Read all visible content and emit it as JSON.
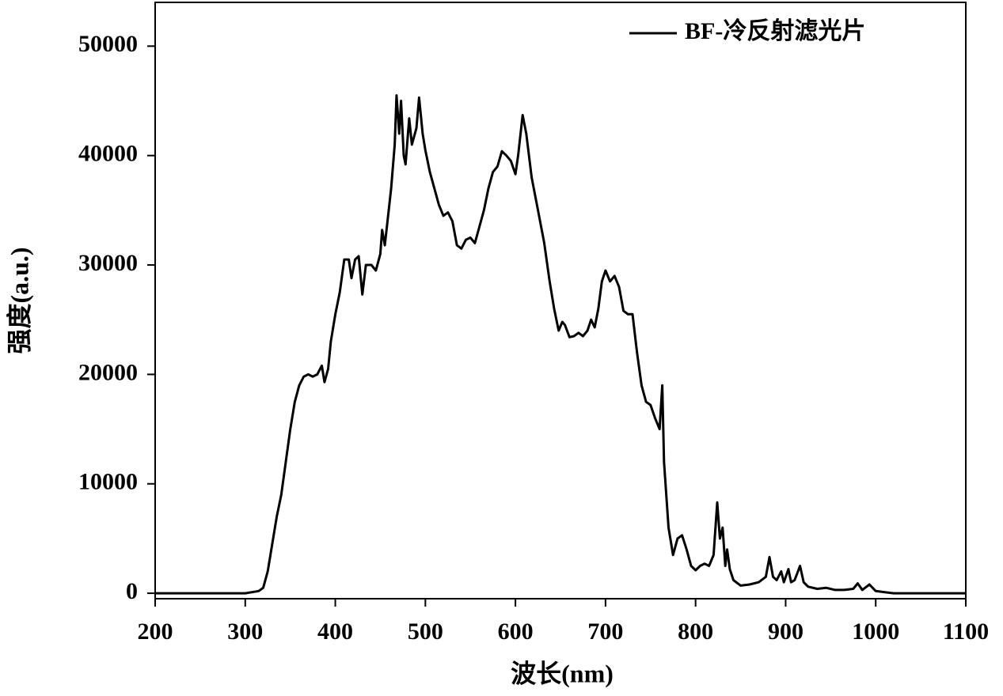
{
  "chart_data": {
    "type": "line",
    "xlabel": "波长(nm)",
    "ylabel": "强度(a.u.)",
    "xlim": [
      200,
      1100
    ],
    "xticks": [
      200,
      300,
      400,
      500,
      600,
      700,
      800,
      900,
      1000,
      1100
    ],
    "ylim": [
      -500,
      54000
    ],
    "yticks": [
      0,
      10000,
      20000,
      30000,
      40000,
      50000
    ],
    "legend": "upper right",
    "x": [
      200,
      300,
      315,
      320,
      325,
      330,
      335,
      340,
      345,
      350,
      355,
      360,
      365,
      370,
      375,
      380,
      385,
      388,
      392,
      395,
      400,
      405,
      410,
      415,
      418,
      422,
      426,
      430,
      434,
      440,
      445,
      450,
      452,
      455,
      458,
      462,
      466,
      468,
      471,
      473,
      476,
      478,
      482,
      485,
      490,
      493,
      497,
      500,
      505,
      510,
      515,
      520,
      525,
      530,
      535,
      540,
      545,
      550,
      555,
      560,
      565,
      570,
      575,
      580,
      585,
      590,
      595,
      600,
      603,
      608,
      612,
      618,
      625,
      632,
      638,
      643,
      648,
      652,
      655,
      660,
      665,
      670,
      675,
      680,
      684,
      688,
      692,
      696,
      700,
      705,
      710,
      715,
      720,
      725,
      730,
      735,
      740,
      745,
      750,
      755,
      760,
      763,
      765,
      770,
      775,
      780,
      785,
      790,
      795,
      800,
      805,
      810,
      815,
      820,
      824,
      827,
      830,
      833,
      835,
      838,
      842,
      850,
      860,
      870,
      878,
      882,
      886,
      890,
      895,
      898,
      903,
      906,
      910,
      916,
      920,
      925,
      935,
      945,
      955,
      965,
      975,
      980,
      985,
      993,
      1000,
      1010,
      1020,
      1100
    ],
    "series": [
      {
        "name": "BF-冷反射滤光片",
        "color": "#000000",
        "values": [
          0,
          0,
          200,
          500,
          2000,
          4500,
          7000,
          9000,
          12000,
          15000,
          17500,
          19000,
          19800,
          20000,
          19800,
          20000,
          20800,
          19300,
          20500,
          23000,
          25500,
          27500,
          30500,
          30500,
          28800,
          30500,
          30800,
          27300,
          30000,
          30000,
          29500,
          31000,
          33200,
          31800,
          34000,
          37000,
          41000,
          45500,
          42000,
          45000,
          40000,
          39200,
          43400,
          41000,
          42500,
          45300,
          42000,
          40500,
          38500,
          37000,
          35500,
          34500,
          34800,
          34000,
          31800,
          31500,
          32300,
          32500,
          32000,
          33500,
          35000,
          37000,
          38500,
          39000,
          40400,
          40000,
          39500,
          38300,
          40000,
          43700,
          42000,
          38000,
          35000,
          32000,
          28500,
          26000,
          24000,
          24800,
          24500,
          23400,
          23500,
          23800,
          23500,
          24000,
          25000,
          24300,
          26000,
          28500,
          29500,
          28500,
          29000,
          28000,
          25800,
          25500,
          25500,
          22000,
          19000,
          17500,
          17200,
          16000,
          15000,
          19000,
          12000,
          6000,
          3500,
          5000,
          5300,
          4000,
          2500,
          2100,
          2500,
          2700,
          2500,
          3500,
          8300,
          5000,
          6000,
          2500,
          4000,
          2200,
          1200,
          700,
          800,
          1000,
          1500,
          3300,
          1500,
          1200,
          2000,
          1000,
          2200,
          1000,
          1200,
          2500,
          1000,
          600,
          400,
          500,
          300,
          300,
          400,
          900,
          300,
          800,
          200,
          100,
          0,
          0
        ]
      }
    ]
  }
}
